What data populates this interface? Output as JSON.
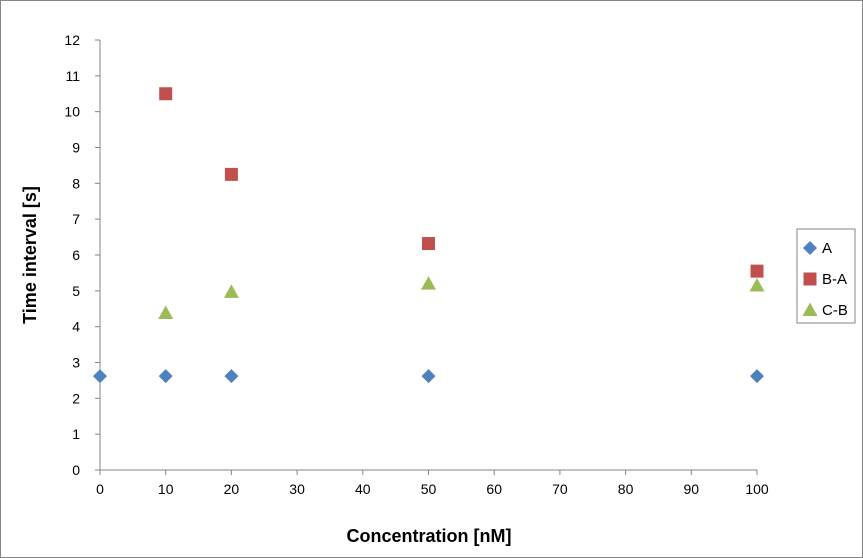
{
  "chart_data": {
    "type": "scatter",
    "xlabel": "Concentration [nM]",
    "ylabel": "Time interval [s]",
    "xlim": [
      0,
      100
    ],
    "ylim": [
      0,
      12
    ],
    "xticks": [
      0,
      10,
      20,
      30,
      40,
      50,
      60,
      70,
      80,
      90,
      100
    ],
    "yticks": [
      0,
      1,
      2,
      3,
      4,
      5,
      6,
      7,
      8,
      9,
      10,
      11,
      12
    ],
    "grid": false,
    "legend": "right",
    "series": [
      {
        "name": "A",
        "marker": "diamond",
        "color": "#4F81BD",
        "x": [
          0,
          10,
          20,
          50,
          100
        ],
        "y": [
          2.62,
          2.62,
          2.62,
          2.62,
          2.62
        ]
      },
      {
        "name": "B-A",
        "marker": "square",
        "color": "#C0504D",
        "x": [
          10,
          20,
          50,
          100
        ],
        "y": [
          10.5,
          8.25,
          6.32,
          5.55
        ]
      },
      {
        "name": "C-B",
        "marker": "triangle",
        "color": "#9BBB59",
        "x": [
          10,
          20,
          50,
          100
        ],
        "y": [
          4.38,
          4.97,
          5.2,
          5.15
        ]
      }
    ]
  }
}
